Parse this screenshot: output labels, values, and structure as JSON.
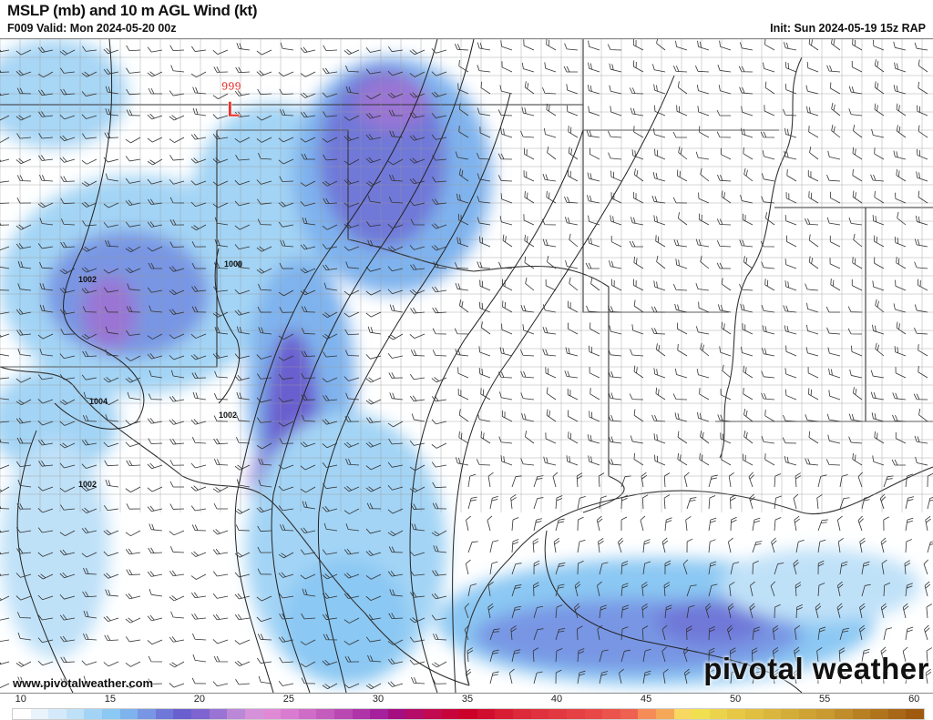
{
  "header": {
    "title": "MSLP (mb) and 10 m AGL Wind (kt)",
    "valid": "F009 Valid: Mon 2024-05-20 00z",
    "init": "Init: Sun 2024-05-19 15z RAP"
  },
  "map": {
    "low_center": {
      "symbol": "L",
      "pressure": "999",
      "color": "#e8302a"
    },
    "isobar_labels": [
      "1000",
      "1002",
      "1004",
      "1002",
      "1002"
    ]
  },
  "watermark": {
    "url": "www.pivotalweather.com",
    "logo": "pivotal weather"
  },
  "colorbar": {
    "units": "kt",
    "min": 10,
    "max": 60,
    "tick_labels": [
      "10",
      "15",
      "20",
      "25",
      "30",
      "35",
      "40",
      "45",
      "50",
      "55",
      "60"
    ],
    "color_stops": [
      [
        10,
        "#ffffff"
      ],
      [
        11,
        "#e8f3fc"
      ],
      [
        12,
        "#d4eafa"
      ],
      [
        13,
        "#bfe1f8"
      ],
      [
        14,
        "#a3d4f5"
      ],
      [
        15,
        "#8bc8f3"
      ],
      [
        16,
        "#7fb3ee"
      ],
      [
        17,
        "#7896e4"
      ],
      [
        18,
        "#6f78d8"
      ],
      [
        19,
        "#6a5fcf"
      ],
      [
        20,
        "#7e64d0"
      ],
      [
        21,
        "#9a74d4"
      ],
      [
        22,
        "#bb88d8"
      ],
      [
        23,
        "#d592d8"
      ],
      [
        24,
        "#e08ad6"
      ],
      [
        25,
        "#d97bd0"
      ],
      [
        27,
        "#c45cbd"
      ],
      [
        30,
        "#a5209d"
      ],
      [
        31,
        "#a50e80"
      ],
      [
        33,
        "#c20a50"
      ],
      [
        35,
        "#cc0028"
      ],
      [
        38,
        "#dc2a3a"
      ],
      [
        42,
        "#e84848"
      ],
      [
        44,
        "#ee6050"
      ],
      [
        45,
        "#f58c58"
      ],
      [
        46,
        "#f5a858"
      ],
      [
        47,
        "#f8d860"
      ],
      [
        48,
        "#f0e050"
      ],
      [
        50,
        "#e6c845"
      ],
      [
        55,
        "#c89a30"
      ],
      [
        60,
        "#a05a10"
      ]
    ]
  }
}
